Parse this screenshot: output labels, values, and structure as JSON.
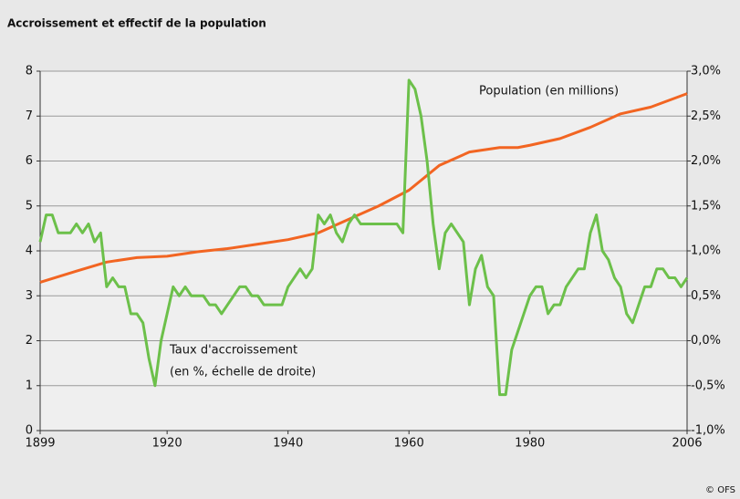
{
  "chart_data": {
    "type": "line",
    "title": "Accroissement et effectif de la population",
    "source": "© OFS",
    "annotations": [
      "(en %, échelle de droite)"
    ],
    "xlim": [
      1899,
      2006
    ],
    "xticks": [
      1899,
      1920,
      1940,
      1960,
      1980,
      2006
    ],
    "ylim": [
      0,
      8
    ],
    "yticks": [
      0,
      1,
      2,
      3,
      4,
      5,
      6,
      7,
      8
    ],
    "y2lim": [
      -1,
      3
    ],
    "y2ticks": [
      {
        "value": -1,
        "label": "-1,0%"
      },
      {
        "value": -0.5,
        "label": "-0,5%"
      },
      {
        "value": 0,
        "label": "0,0%"
      },
      {
        "value": 0.5,
        "label": "0,5%"
      },
      {
        "value": 1,
        "label": "1,0%"
      },
      {
        "value": 1.5,
        "label": "1,5%"
      },
      {
        "value": 2,
        "label": "2,0%"
      },
      {
        "value": 2.5,
        "label": "2,5%"
      },
      {
        "value": 3,
        "label": "3,0%"
      }
    ],
    "grid": true,
    "series": [
      {
        "name": "Population (en millions)",
        "color": "#f26522",
        "x": [
          1899,
          1905,
          1910,
          1915,
          1920,
          1925,
          1930,
          1935,
          1940,
          1945,
          1950,
          1955,
          1960,
          1965,
          1970,
          1975,
          1978,
          1980,
          1985,
          1990,
          1995,
          2000,
          2006
        ],
        "values": [
          3.3,
          3.55,
          3.75,
          3.85,
          3.88,
          3.98,
          4.05,
          4.15,
          4.25,
          4.4,
          4.7,
          5.0,
          5.35,
          5.9,
          6.2,
          6.3,
          6.3,
          6.35,
          6.5,
          6.75,
          7.05,
          7.2,
          7.5
        ]
      },
      {
        "name": "Taux d'accroissement",
        "color": "#6cc04a",
        "axis": "y2",
        "x": [
          1899,
          1900,
          1901,
          1902,
          1904,
          1905,
          1906,
          1907,
          1908,
          1909,
          1910,
          1911,
          1912,
          1913,
          1914,
          1915,
          1916,
          1917,
          1918,
          1919,
          1920,
          1921,
          1922,
          1923,
          1924,
          1926,
          1927,
          1928,
          1929,
          1930,
          1932,
          1933,
          1934,
          1935,
          1936,
          1939,
          1940,
          1941,
          1942,
          1943,
          1944,
          1945,
          1946,
          1947,
          1948,
          1949,
          1950,
          1951,
          1952,
          1958,
          1959,
          1960,
          1961,
          1962,
          1963,
          1964,
          1965,
          1966,
          1967,
          1968,
          1969,
          1970,
          1971,
          1972,
          1973,
          1974,
          1975,
          1976,
          1977,
          1978,
          1979,
          1980,
          1981,
          1982,
          1983,
          1984,
          1985,
          1986,
          1987,
          1988,
          1989,
          1990,
          1991,
          1992,
          1993,
          1994,
          1995,
          1996,
          1997,
          1998,
          1999,
          2000,
          2001,
          2002,
          2003,
          2004,
          2005,
          2006
        ],
        "values": [
          1.1,
          1.4,
          1.4,
          1.2,
          1.2,
          1.3,
          1.2,
          1.3,
          1.1,
          1.2,
          0.6,
          0.7,
          0.6,
          0.6,
          0.3,
          0.3,
          0.2,
          -0.2,
          -0.5,
          0,
          0.3,
          0.6,
          0.5,
          0.6,
          0.5,
          0.5,
          0.4,
          0.4,
          0.3,
          0.4,
          0.6,
          0.6,
          0.5,
          0.5,
          0.4,
          0.4,
          0.6,
          0.7,
          0.8,
          0.7,
          0.8,
          1.4,
          1.3,
          1.4,
          1.2,
          1.1,
          1.3,
          1.4,
          1.3,
          1.3,
          1.2,
          2.9,
          2.8,
          2.5,
          2.0,
          1.3,
          0.8,
          1.2,
          1.3,
          1.2,
          1.1,
          0.4,
          0.8,
          0.95,
          0.6,
          0.5,
          -0.6,
          -0.6,
          -0.1,
          0.1,
          0.3,
          0.5,
          0.6,
          0.6,
          0.3,
          0.4,
          0.4,
          0.6,
          0.7,
          0.8,
          0.8,
          1.2,
          1.4,
          1.0,
          0.9,
          0.7,
          0.6,
          0.3,
          0.2,
          0.4,
          0.6,
          0.6,
          0.8,
          0.8,
          0.7,
          0.7,
          0.6,
          0.7
        ]
      }
    ]
  }
}
